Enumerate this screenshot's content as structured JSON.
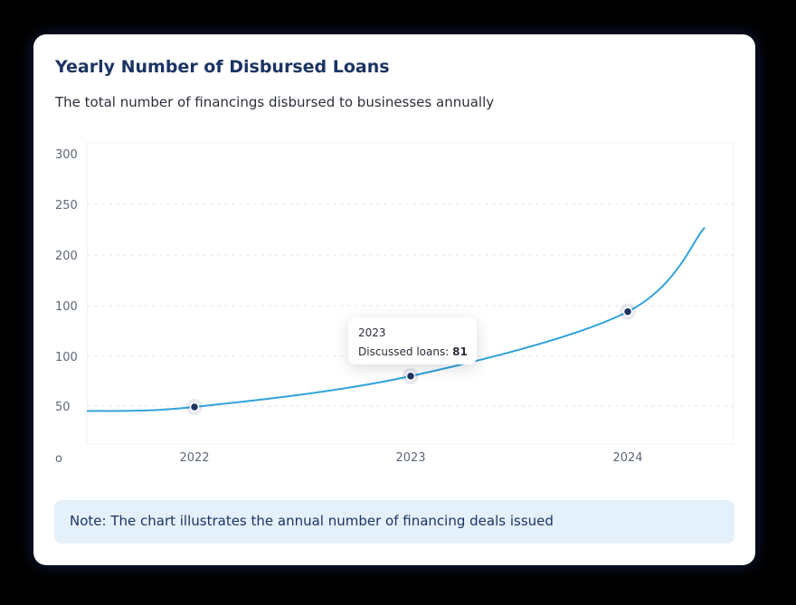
{
  "card": {
    "title": "Yearly Number of Disbursed Loans",
    "subtitle": "The total number of financings disbursed to businesses annually"
  },
  "chart_data": {
    "type": "line",
    "title": "Yearly Number of Disbursed Loans",
    "subtitle": "The total number of financings disbursed to businesses annually",
    "categories": [
      "2022",
      "2023",
      "2024"
    ],
    "y_tick_labels": [
      "o",
      "50",
      "100",
      "100",
      "200",
      "250",
      "300"
    ],
    "series": [
      {
        "values": [
          50,
          81,
          145
        ],
        "color": "#2fa3d9"
      }
    ],
    "curve_start_value": 46,
    "curve_end_value": 228,
    "grid": true,
    "legend": "none"
  },
  "tooltip": {
    "year": "2023",
    "label": "Discussed loans:",
    "value": "81"
  },
  "note": {
    "text": "Note: The chart illustrates the annual number of financing deals issued"
  },
  "colors": {
    "title": "#1c3464",
    "line": "#2fa3d9",
    "point": "#1c3464",
    "note_bg": "#e4f0fa"
  }
}
